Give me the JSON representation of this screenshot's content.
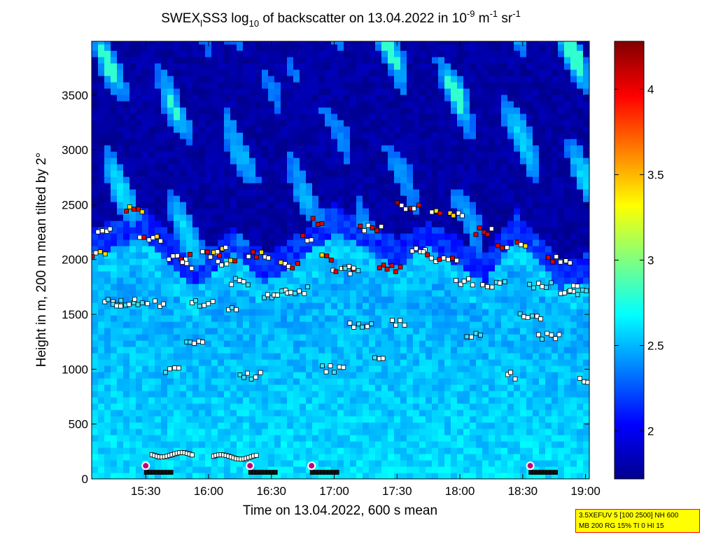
{
  "chart_data": {
    "type": "heatmap",
    "title": {
      "prefix": "SWEX",
      "sub1": "l",
      "mid": "SS3 log",
      "sub2": "10",
      "rest": " of backscatter on 13.04.2022 in 10",
      "sup1": "-9",
      "unit1": " m",
      "sup2": "-1",
      "unit2": " sr",
      "sup3": "-1"
    },
    "xlabel": "Time on 13.04.2022, 600 s mean",
    "ylabel": "Height in m, 200 m mean tilted by 2°",
    "x_ticks": [
      {
        "label": "15:30",
        "value": 15.5
      },
      {
        "label": "16:00",
        "value": 16.0
      },
      {
        "label": "16:30",
        "value": 16.5
      },
      {
        "label": "17:00",
        "value": 17.0
      },
      {
        "label": "17:30",
        "value": 17.5
      },
      {
        "label": "18:00",
        "value": 18.0
      },
      {
        "label": "18:30",
        "value": 18.5
      },
      {
        "label": "19:00",
        "value": 19.0
      }
    ],
    "xlim": [
      15.07,
      19.03
    ],
    "ylim": [
      0,
      3990
    ],
    "y_ticks": [
      0,
      500,
      1000,
      1500,
      2000,
      2500,
      3000,
      3500
    ],
    "colorbar": {
      "clim": [
        1.72,
        4.28
      ],
      "ticks": [
        "2",
        "2.5",
        "3",
        "3.5",
        "4"
      ],
      "tick_values": [
        2,
        2.5,
        3,
        3.5,
        4
      ],
      "colormap": "jet"
    },
    "layers": [
      {
        "x": 15.07,
        "bottom": 0,
        "top": 2050
      },
      {
        "x": 15.5,
        "bottom": 0,
        "top": 2200
      },
      {
        "x": 15.9,
        "bottom": 0,
        "top": 1750
      },
      {
        "x": 16.2,
        "bottom": 0,
        "top": 2050
      },
      {
        "x": 16.45,
        "bottom": 0,
        "top": 1800
      },
      {
        "x": 16.75,
        "bottom": 0,
        "top": 2000
      },
      {
        "x": 17.0,
        "bottom": 0,
        "top": 2250
      },
      {
        "x": 17.5,
        "bottom": 0,
        "top": 1950
      },
      {
        "x": 17.75,
        "bottom": 0,
        "top": 2100
      },
      {
        "x": 18.2,
        "bottom": 0,
        "top": 1800
      },
      {
        "x": 18.45,
        "bottom": 0,
        "top": 2200
      },
      {
        "x": 18.8,
        "bottom": 0,
        "top": 1750
      },
      {
        "x": 19.03,
        "bottom": 0,
        "top": 1800
      }
    ],
    "layer_detections": [
      {
        "x": 15.1,
        "y": 2050
      },
      {
        "x": 15.18,
        "y": 2250
      },
      {
        "x": 15.25,
        "y": 1620
      },
      {
        "x": 15.33,
        "y": 1580
      },
      {
        "x": 15.42,
        "y": 2450
      },
      {
        "x": 15.47,
        "y": 1610
      },
      {
        "x": 15.55,
        "y": 2200
      },
      {
        "x": 15.62,
        "y": 1600
      },
      {
        "x": 15.72,
        "y": 1000
      },
      {
        "x": 15.78,
        "y": 2030
      },
      {
        "x": 15.84,
        "y": 1950
      },
      {
        "x": 15.9,
        "y": 1250
      },
      {
        "x": 15.96,
        "y": 1600
      },
      {
        "x": 16.03,
        "y": 2050
      },
      {
        "x": 16.1,
        "y": 2080
      },
      {
        "x": 16.15,
        "y": 1980
      },
      {
        "x": 16.2,
        "y": 1560
      },
      {
        "x": 16.26,
        "y": 1800
      },
      {
        "x": 16.34,
        "y": 940
      },
      {
        "x": 16.41,
        "y": 2040
      },
      {
        "x": 16.5,
        "y": 1650
      },
      {
        "x": 16.58,
        "y": 1700
      },
      {
        "x": 16.65,
        "y": 1950
      },
      {
        "x": 16.72,
        "y": 1720
      },
      {
        "x": 16.8,
        "y": 2200
      },
      {
        "x": 16.88,
        "y": 2350
      },
      {
        "x": 16.95,
        "y": 2020
      },
      {
        "x": 17.0,
        "y": 1000
      },
      {
        "x": 17.08,
        "y": 1920
      },
      {
        "x": 17.15,
        "y": 1900
      },
      {
        "x": 17.22,
        "y": 1390
      },
      {
        "x": 17.3,
        "y": 2280
      },
      {
        "x": 17.37,
        "y": 1110
      },
      {
        "x": 17.45,
        "y": 1920
      },
      {
        "x": 17.52,
        "y": 1430
      },
      {
        "x": 17.6,
        "y": 2490
      },
      {
        "x": 17.68,
        "y": 2100
      },
      {
        "x": 17.75,
        "y": 2040
      },
      {
        "x": 17.82,
        "y": 2420
      },
      {
        "x": 17.9,
        "y": 1990
      },
      {
        "x": 17.98,
        "y": 2430
      },
      {
        "x": 18.05,
        "y": 1800
      },
      {
        "x": 18.12,
        "y": 1310
      },
      {
        "x": 18.2,
        "y": 2260
      },
      {
        "x": 18.28,
        "y": 1770
      },
      {
        "x": 18.35,
        "y": 2100
      },
      {
        "x": 18.42,
        "y": 940
      },
      {
        "x": 18.5,
        "y": 2150
      },
      {
        "x": 18.57,
        "y": 1480
      },
      {
        "x": 18.65,
        "y": 1770
      },
      {
        "x": 18.72,
        "y": 1300
      },
      {
        "x": 18.8,
        "y": 2000
      },
      {
        "x": 18.88,
        "y": 1700
      },
      {
        "x": 18.95,
        "y": 1740
      },
      {
        "x": 19.0,
        "y": 900
      }
    ],
    "surface_markers": [
      {
        "x": 15.5,
        "y": 120
      },
      {
        "x": 16.33,
        "y": 120
      },
      {
        "x": 16.82,
        "y": 120
      },
      {
        "x": 18.56,
        "y": 120
      }
    ]
  },
  "info_box": {
    "line1": "3.5XEFUV 5 [100 2500] NH 600",
    "line2": "MB 200 RG 15% TI 0 HI 15"
  }
}
